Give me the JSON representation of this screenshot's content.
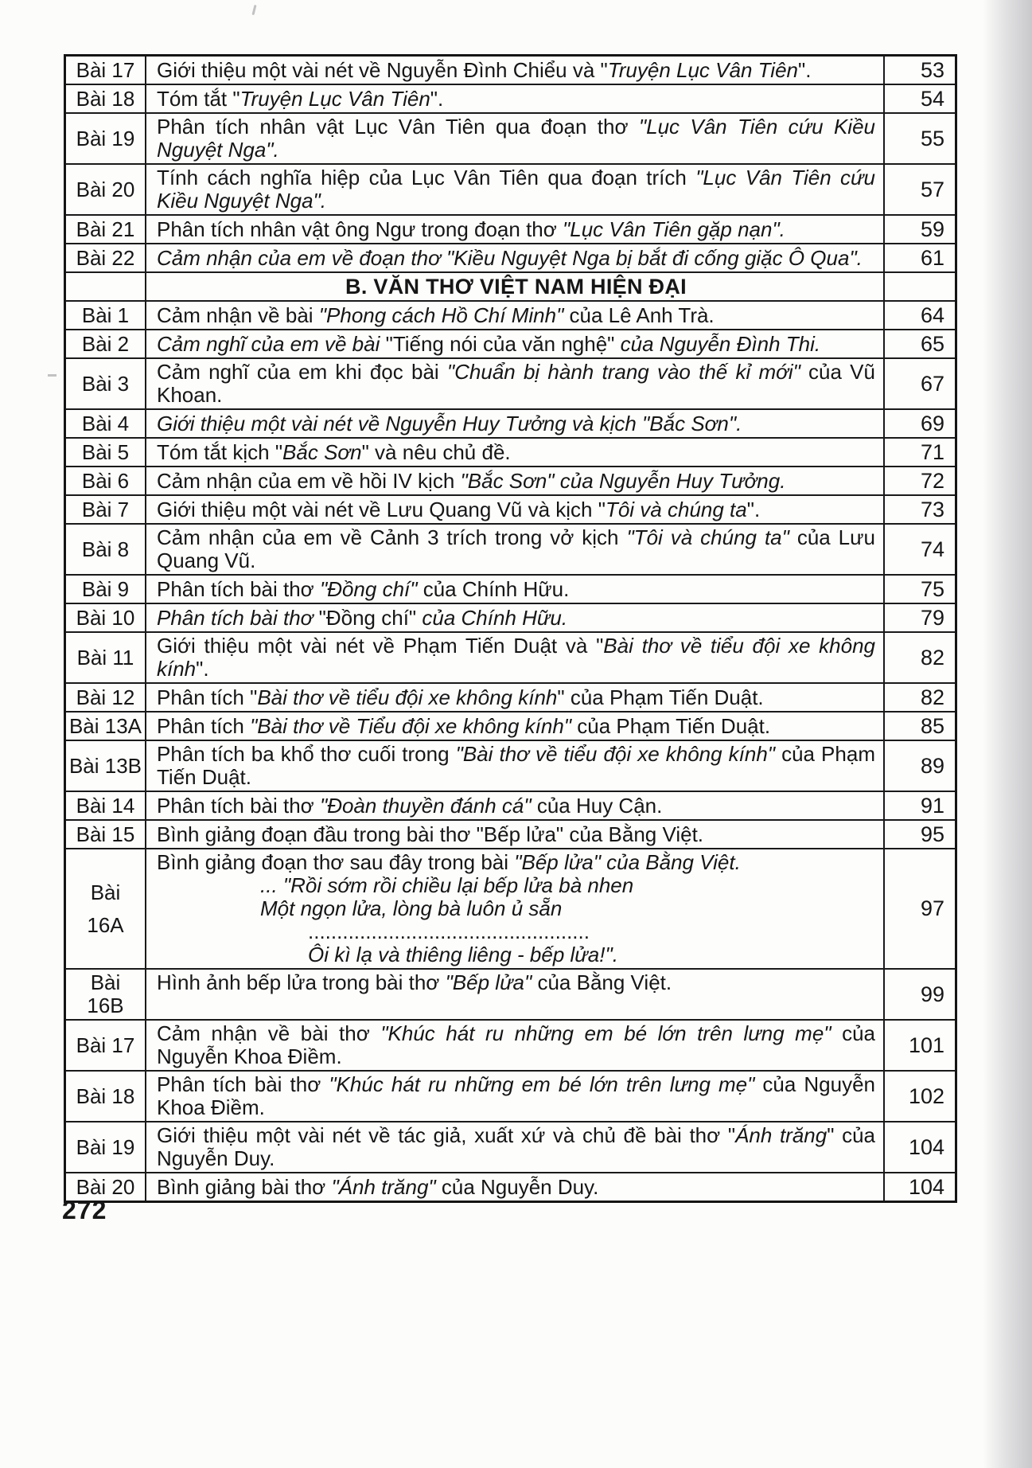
{
  "document": {
    "footer_page_number": "272"
  },
  "table": {
    "rows": [
      {
        "kind": "entry",
        "label": [
          "Bài 17"
        ],
        "page": "53",
        "content": [
          {
            "style": "normal",
            "segments": [
              {
                "t": "Giới thiệu một vài nét về Nguyễn Đình Chiểu và \"",
                "i": false
              },
              {
                "t": "Truyện Lục Vân Tiên",
                "i": true
              },
              {
                "t": "\".",
                "i": false
              }
            ]
          }
        ]
      },
      {
        "kind": "entry",
        "label": [
          "Bài 18"
        ],
        "page": "54",
        "content": [
          {
            "style": "normal",
            "segments": [
              {
                "t": "Tóm tắt \"",
                "i": false
              },
              {
                "t": "Truyện Lục Vân Tiên",
                "i": true
              },
              {
                "t": "\".",
                "i": false
              }
            ]
          }
        ]
      },
      {
        "kind": "entry",
        "label": [
          "Bài 19"
        ],
        "page": "55",
        "content": [
          {
            "style": "normal",
            "segments": [
              {
                "t": "Phân tích nhân vật Lục Vân Tiên qua đoạn thơ ",
                "i": false
              },
              {
                "t": "\"Lục Vân Tiên cứu Kiều Nguyệt Nga\".",
                "i": true
              }
            ]
          }
        ]
      },
      {
        "kind": "entry",
        "label": [
          "Bài 20"
        ],
        "page": "57",
        "content": [
          {
            "style": "normal",
            "segments": [
              {
                "t": "Tính cách nghĩa hiệp của Lục Vân Tiên qua đoạn trích ",
                "i": false
              },
              {
                "t": "\"Lục Vân Tiên cứu Kiều Nguyệt Nga\".",
                "i": true
              }
            ]
          }
        ]
      },
      {
        "kind": "entry",
        "label": [
          "Bài 21"
        ],
        "page": "59",
        "content": [
          {
            "style": "normal",
            "segments": [
              {
                "t": "Phân tích nhân vật ông Ngư trong đoạn thơ ",
                "i": false
              },
              {
                "t": "\"Lục Vân Tiên gặp nạn\".",
                "i": true
              }
            ]
          }
        ]
      },
      {
        "kind": "entry",
        "label": [
          "Bài 22"
        ],
        "page": "61",
        "content": [
          {
            "style": "normal",
            "segments": [
              {
                "t": "Cảm nhận của em về đoạn thơ \"Kiều Nguyệt Nga bị bắt đi cống giặc Ô Qua\".",
                "i": true
              }
            ]
          }
        ]
      },
      {
        "kind": "section",
        "label": [],
        "page": "",
        "title": "B. VĂN THƠ VIỆT NAM HIỆN ĐẠI"
      },
      {
        "kind": "entry",
        "label": [
          "Bài 1"
        ],
        "page": "64",
        "content": [
          {
            "style": "normal",
            "segments": [
              {
                "t": "Cảm nhận về bài ",
                "i": false
              },
              {
                "t": "\"Phong cách Hồ Chí Minh\" ",
                "i": true
              },
              {
                "t": "của Lê Anh Trà.",
                "i": false
              }
            ]
          }
        ]
      },
      {
        "kind": "entry",
        "label": [
          "Bài 2"
        ],
        "page": "65",
        "content": [
          {
            "style": "normal",
            "segments": [
              {
                "t": "Cảm nghĩ của em về bài ",
                "i": true
              },
              {
                "t": "\"Tiếng nói của văn nghệ\" ",
                "i": false
              },
              {
                "t": "của Nguyễn Đình Thi.",
                "i": true
              }
            ]
          }
        ]
      },
      {
        "kind": "entry",
        "label": [
          "Bài 3"
        ],
        "page": "67",
        "content": [
          {
            "style": "normal",
            "segments": [
              {
                "t": "Cảm nghĩ của em khi đọc bài ",
                "i": false
              },
              {
                "t": "\"Chuẩn bị hành trang vào thế kỉ mới\" ",
                "i": true
              },
              {
                "t": "của Vũ Khoan.",
                "i": false
              }
            ]
          }
        ]
      },
      {
        "kind": "entry",
        "label": [
          "Bài 4"
        ],
        "page": "69",
        "content": [
          {
            "style": "normal",
            "segments": [
              {
                "t": "Giới thiệu một vài nét về Nguyễn Huy Tưởng và kịch \"Bắc Sơn\".",
                "i": true
              }
            ]
          }
        ]
      },
      {
        "kind": "entry",
        "label": [
          "Bài 5"
        ],
        "page": "71",
        "content": [
          {
            "style": "normal",
            "segments": [
              {
                "t": "Tóm tắt kịch \"",
                "i": false
              },
              {
                "t": "Bắc Sơn",
                "i": true
              },
              {
                "t": "\" và nêu chủ đề.",
                "i": false
              }
            ]
          }
        ]
      },
      {
        "kind": "entry",
        "label": [
          "Bài 6"
        ],
        "page": "72",
        "content": [
          {
            "style": "normal",
            "segments": [
              {
                "t": "Cảm nhận của em về hồi IV kịch ",
                "i": false
              },
              {
                "t": "\"Bắc Sơn\" của Nguyễn Huy Tưởng.",
                "i": true
              }
            ]
          }
        ]
      },
      {
        "kind": "entry",
        "label": [
          "Bài 7"
        ],
        "page": "73",
        "content": [
          {
            "style": "normal",
            "segments": [
              {
                "t": "Giới thiệu một vài nét về Lưu Quang Vũ và kịch \"",
                "i": false
              },
              {
                "t": "Tôi và chúng ta",
                "i": true
              },
              {
                "t": "\".",
                "i": false
              }
            ]
          }
        ]
      },
      {
        "kind": "entry",
        "label": [
          "Bài 8"
        ],
        "page": "74",
        "content": [
          {
            "style": "normal",
            "segments": [
              {
                "t": "Cảm nhận của em về Cảnh 3 trích trong vở kịch ",
                "i": false
              },
              {
                "t": "\"Tôi và chúng ta\" ",
                "i": true
              },
              {
                "t": "của Lưu Quang Vũ.",
                "i": false
              }
            ]
          }
        ]
      },
      {
        "kind": "entry",
        "label": [
          "Bài 9"
        ],
        "page": "75",
        "content": [
          {
            "style": "normal",
            "segments": [
              {
                "t": "Phân tích bài thơ ",
                "i": false
              },
              {
                "t": "\"Đồng chí\" ",
                "i": true
              },
              {
                "t": "của Chính Hữu.",
                "i": false
              }
            ]
          }
        ]
      },
      {
        "kind": "entry",
        "label": [
          "Bài 10"
        ],
        "page": "79",
        "content": [
          {
            "style": "normal",
            "segments": [
              {
                "t": "Phân tích bài thơ ",
                "i": true
              },
              {
                "t": "\"Đồng chí\" ",
                "i": false
              },
              {
                "t": "của Chính Hữu.",
                "i": true
              }
            ]
          }
        ]
      },
      {
        "kind": "entry",
        "label": [
          "Bài 11"
        ],
        "page": "82",
        "content": [
          {
            "style": "normal",
            "segments": [
              {
                "t": "Giới thiệu một vài nét về Phạm Tiến Duật và \"",
                "i": false
              },
              {
                "t": "Bài thơ về tiểu đội xe không kính",
                "i": true
              },
              {
                "t": "\".",
                "i": false
              }
            ]
          }
        ]
      },
      {
        "kind": "entry",
        "label": [
          "Bài 12"
        ],
        "page": "82",
        "content": [
          {
            "style": "normal",
            "segments": [
              {
                "t": "Phân tích \"",
                "i": false
              },
              {
                "t": "Bài thơ về tiểu đội xe không kính",
                "i": true
              },
              {
                "t": "\" của Phạm Tiến Duật.",
                "i": false
              }
            ]
          }
        ]
      },
      {
        "kind": "entry",
        "label": [
          "Bài 13A"
        ],
        "page": "85",
        "content": [
          {
            "style": "normal",
            "segments": [
              {
                "t": "Phân tích ",
                "i": false
              },
              {
                "t": "\"Bài thơ về Tiểu đội xe không kính\" ",
                "i": true
              },
              {
                "t": "của Phạm Tiến Duật.",
                "i": false
              }
            ]
          }
        ]
      },
      {
        "kind": "entry",
        "label": [
          "Bài 13B"
        ],
        "page": "89",
        "content": [
          {
            "style": "normal",
            "segments": [
              {
                "t": "Phân tích ba khổ thơ cuối trong ",
                "i": false
              },
              {
                "t": "\"Bài thơ về tiểu đội xe không kính\" ",
                "i": true
              },
              {
                "t": "của Phạm Tiến Duật.",
                "i": false
              }
            ]
          }
        ]
      },
      {
        "kind": "entry",
        "label": [
          "Bài 14"
        ],
        "page": "91",
        "content": [
          {
            "style": "normal",
            "segments": [
              {
                "t": "Phân tích bài thơ ",
                "i": false
              },
              {
                "t": "\"Đoàn thuyền đánh cá\" ",
                "i": true
              },
              {
                "t": "của Huy Cận.",
                "i": false
              }
            ]
          }
        ]
      },
      {
        "kind": "entry",
        "label": [
          "Bài 15"
        ],
        "page": "95",
        "content": [
          {
            "style": "normal",
            "segments": [
              {
                "t": "Bình giảng đoạn đầu trong bài thơ \"Bếp lửa\" của Bằng Việt.",
                "i": false
              }
            ]
          }
        ]
      },
      {
        "kind": "entry",
        "label": [
          "Bài",
          "16A"
        ],
        "page": "97",
        "content": [
          {
            "style": "normal",
            "segments": [
              {
                "t": "Bình giảng đoạn thơ sau đây trong bài ",
                "i": false
              },
              {
                "t": "\"Bếp lửa\" của Bằng Việt.",
                "i": true
              }
            ]
          },
          {
            "style": "poem",
            "segments": [
              {
                "t": "... \"Rồi sớm rồi chiều lại bếp lửa bà nhen",
                "i": true
              }
            ]
          },
          {
            "style": "poem",
            "segments": [
              {
                "t": "Một ngọn lửa, lòng bà luôn ủ sẵn",
                "i": true
              }
            ]
          },
          {
            "style": "poem-deep",
            "segments": [
              {
                "t": ".................................................",
                "i": false
              }
            ]
          },
          {
            "style": "poem-deep",
            "segments": [
              {
                "t": "Ôi kì lạ và thiêng liêng - bếp lửa!\".",
                "i": true
              }
            ]
          }
        ]
      },
      {
        "kind": "entry",
        "label": [
          "Bài",
          "16B"
        ],
        "page": "99",
        "title_valign": "top",
        "content": [
          {
            "style": "normal",
            "segments": [
              {
                "t": "Hình ảnh bếp lửa trong bài thơ ",
                "i": false
              },
              {
                "t": "\"Bếp lửa\" ",
                "i": true
              },
              {
                "t": "của Bằng Việt.",
                "i": false
              }
            ]
          }
        ]
      },
      {
        "kind": "entry",
        "label": [
          "Bài 17"
        ],
        "page": "101",
        "content": [
          {
            "style": "normal",
            "segments": [
              {
                "t": "Cảm nhận về bài thơ ",
                "i": false
              },
              {
                "t": "\"Khúc hát ru những em bé lớn trên lưng mẹ\" ",
                "i": true
              },
              {
                "t": "của Nguyễn Khoa Điềm.",
                "i": false
              }
            ]
          }
        ]
      },
      {
        "kind": "entry",
        "label": [
          "Bài 18"
        ],
        "page": "102",
        "content": [
          {
            "style": "normal",
            "segments": [
              {
                "t": "Phân tích bài thơ ",
                "i": false
              },
              {
                "t": "\"Khúc hát ru những em bé lớn trên lưng mẹ\" ",
                "i": true
              },
              {
                "t": "của Nguyễn Khoa Điềm.",
                "i": false
              }
            ]
          }
        ]
      },
      {
        "kind": "entry",
        "label": [
          "Bài 19"
        ],
        "page": "104",
        "content": [
          {
            "style": "normal",
            "segments": [
              {
                "t": "Giới thiệu một vài nét về tác giả, xuất xứ và chủ đề bài thơ \"",
                "i": false
              },
              {
                "t": "Ánh trăng",
                "i": true
              },
              {
                "t": "\" của Nguyễn Duy.",
                "i": false
              }
            ]
          }
        ]
      },
      {
        "kind": "entry",
        "label": [
          "Bài 20"
        ],
        "page": "104",
        "content": [
          {
            "style": "normal",
            "segments": [
              {
                "t": "Bình giảng bài thơ ",
                "i": false
              },
              {
                "t": "\"Ánh trăng\" ",
                "i": true
              },
              {
                "t": "của Nguyễn Duy.",
                "i": false
              }
            ]
          }
        ]
      }
    ]
  }
}
